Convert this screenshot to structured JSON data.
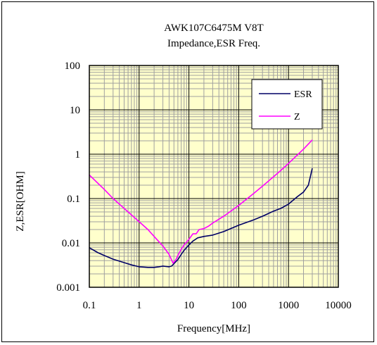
{
  "chart_data": {
    "type": "line",
    "title": "AWK107C6475M V8T",
    "subtitle": "Impedance,ESR  Freq.",
    "xlabel": "Frequency[MHz]",
    "ylabel": "Z,ESR[OHM]",
    "x_scale": "log",
    "y_scale": "log",
    "xlim": [
      0.1,
      10000
    ],
    "ylim": [
      0.001,
      100
    ],
    "grid": true,
    "legend_position": "top-right",
    "x_ticks": [
      "0.1",
      "1",
      "10",
      "100",
      "1000",
      "10000"
    ],
    "y_ticks": [
      "0.001",
      "0.01",
      "0.1",
      "1",
      "10",
      "100"
    ],
    "colors": {
      "plot_background": "#ffffcc",
      "grid_major": "#000000",
      "grid_minor": "#a0a0a0"
    },
    "series": [
      {
        "name": "ESR",
        "color": "#000066",
        "x": [
          0.1,
          0.15,
          0.2,
          0.3,
          0.5,
          0.7,
          1,
          1.5,
          2,
          2.5,
          3,
          4,
          4.5,
          5,
          6,
          7,
          8,
          10,
          12,
          15,
          20,
          30,
          50,
          100,
          200,
          300,
          500,
          700,
          1000,
          1500,
          2000,
          2500,
          3000
        ],
        "y": [
          0.0078,
          0.006,
          0.0052,
          0.0043,
          0.0036,
          0.0032,
          0.0029,
          0.0028,
          0.0028,
          0.0029,
          0.003,
          0.0029,
          0.003,
          0.0034,
          0.0042,
          0.0055,
          0.0068,
          0.009,
          0.011,
          0.013,
          0.014,
          0.015,
          0.018,
          0.025,
          0.033,
          0.04,
          0.052,
          0.06,
          0.075,
          0.11,
          0.14,
          0.2,
          0.48
        ]
      },
      {
        "name": "Z",
        "color": "#ff00ff",
        "x": [
          0.1,
          0.2,
          0.3,
          0.5,
          0.7,
          1,
          1.5,
          2,
          3,
          4,
          4.8,
          5.5,
          6,
          7,
          8,
          10,
          12,
          14,
          16,
          20,
          25,
          30,
          50,
          100,
          200,
          300,
          500,
          700,
          1000,
          2000,
          3000
        ],
        "y": [
          0.34,
          0.16,
          0.1,
          0.06,
          0.043,
          0.03,
          0.02,
          0.014,
          0.0085,
          0.0055,
          0.0035,
          0.0042,
          0.0052,
          0.0072,
          0.009,
          0.012,
          0.016,
          0.016,
          0.02,
          0.021,
          0.024,
          0.028,
          0.04,
          0.07,
          0.13,
          0.19,
          0.31,
          0.43,
          0.62,
          1.3,
          2.1
        ]
      }
    ]
  }
}
